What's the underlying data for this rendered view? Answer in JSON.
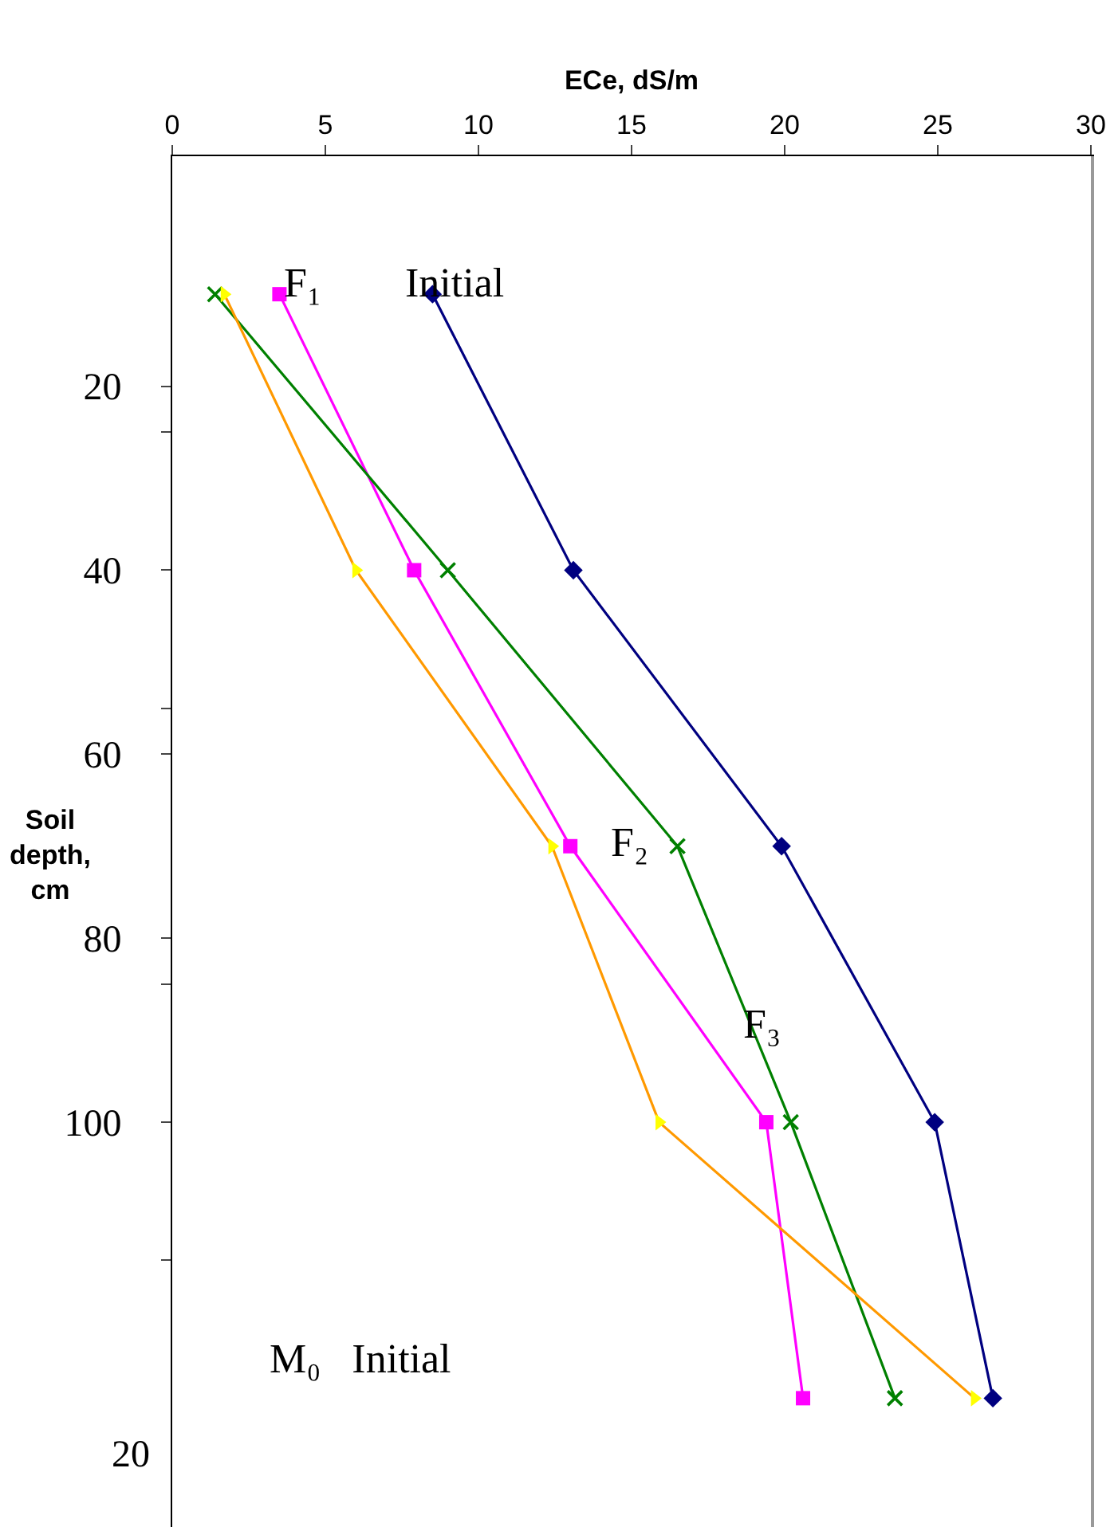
{
  "chart_data": {
    "type": "line",
    "xlabel": "ECe, dS/m",
    "ylabel": "Soil\ndepth,\ncm",
    "series": [
      {
        "color": "#000080",
        "marker": "diamond",
        "x": [
          8.5,
          13.1,
          19.9,
          24.9,
          26.8
        ],
        "values": [
          10,
          40,
          70,
          100,
          130
        ]
      },
      {
        "color": "#ff00ff",
        "marker": "square",
        "x": [
          3.5,
          7.9,
          13.0,
          19.4,
          20.6
        ],
        "values": [
          10,
          40,
          70,
          100,
          130
        ]
      },
      {
        "color": "#008000",
        "marker": "cross",
        "x": [
          1.4,
          9.0,
          16.5,
          20.2,
          23.6
        ],
        "values": [
          10,
          40,
          70,
          100,
          130
        ]
      },
      {
        "color": "#ff9900",
        "colors": [
          "#ffff00",
          "#ffff00",
          "#ffff00",
          "#ffff00",
          "#ffff00"
        ],
        "marker": "triangle",
        "x": [
          1.7,
          6.0,
          12.4,
          15.9,
          26.2
        ],
        "values": [
          10,
          40,
          70,
          100,
          130
        ]
      }
    ],
    "xlim": [
      0,
      30
    ],
    "xticks": [
      0,
      5,
      10,
      15,
      20,
      25,
      30
    ],
    "ylim": [
      144,
      -5
    ],
    "yticks": [
      {
        "value": 20,
        "label": "20"
      },
      {
        "value": 25,
        "label": null
      },
      {
        "value": 40,
        "label": "40"
      },
      {
        "value": 55,
        "label": null
      },
      {
        "value": 60,
        "label": "60"
      },
      {
        "value": 80,
        "label": "80"
      },
      {
        "value": 85,
        "label": null
      },
      {
        "value": 100,
        "label": "100"
      },
      {
        "value": 115,
        "label": null
      }
    ],
    "annotations": [
      "F₁",
      "Initial",
      "F₂",
      "F₃",
      "M₀   Initial",
      "20"
    ],
    "line_style": "solid"
  }
}
